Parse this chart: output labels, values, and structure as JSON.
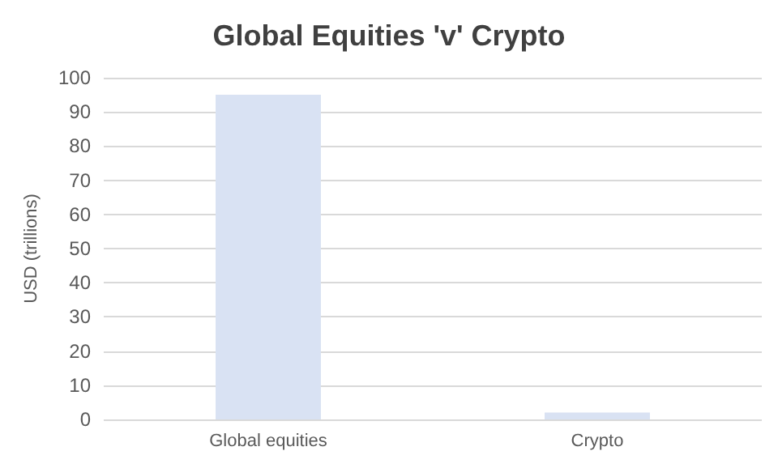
{
  "chart_data": {
    "type": "bar",
    "title": "Global Equities 'v' Crypto",
    "ylabel": "USD (trillions)",
    "categories": [
      "Global equities",
      "Crypto"
    ],
    "values": [
      95,
      2
    ],
    "color": "#d9e2f3",
    "ylim": [
      0,
      100
    ],
    "yticks": [
      0,
      10,
      20,
      30,
      40,
      50,
      60,
      70,
      80,
      90,
      100
    ],
    "grid": "y"
  }
}
